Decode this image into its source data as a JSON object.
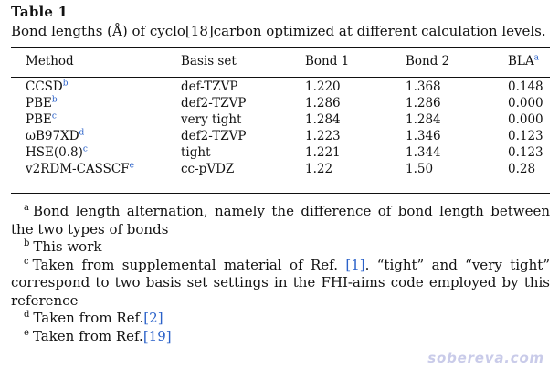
{
  "table_label": "Table 1",
  "caption": "Bond lengths (Å) of cyclo[18]carbon optimized at different calculation levels.",
  "columns": {
    "method": "Method",
    "basis": "Basis set",
    "bond1": "Bond 1",
    "bond2": "Bond 2",
    "bla": "BLA",
    "bla_sup": "a"
  },
  "rows": [
    {
      "method": "CCSD",
      "sup": "b",
      "basis": "def-TZVP",
      "bond1": "1.220",
      "bond2": "1.368",
      "bla": "0.148"
    },
    {
      "method": "PBE",
      "sup": "b",
      "basis": "def2-TZVP",
      "bond1": "1.286",
      "bond2": "1.286",
      "bla": "0.000"
    },
    {
      "method": "PBE",
      "sup": "c",
      "basis": "very tight",
      "bond1": "1.284",
      "bond2": "1.284",
      "bla": "0.000"
    },
    {
      "method": "ωB97XD",
      "sup": "d",
      "basis": "def2-TZVP",
      "bond1": "1.223",
      "bond2": "1.346",
      "bla": "0.123"
    },
    {
      "method": "HSE(0.8)",
      "sup": "c",
      "basis": "tight",
      "bond1": "1.221",
      "bond2": "1.344",
      "bla": "0.123"
    },
    {
      "method": "v2RDM-CASSCF",
      "sup": "e",
      "basis": "cc-pVDZ",
      "bond1": "1.22",
      "bond2": "1.50",
      "bla": "0.28"
    }
  ],
  "notes": [
    {
      "mark": "a",
      "text": "Bond length alternation, namely the difference of bond length between the two types of bonds",
      "ref": "",
      "after": ""
    },
    {
      "mark": "b",
      "text": "This work",
      "ref": "",
      "after": ""
    },
    {
      "mark": "c",
      "text": "Taken from supplemental material of Ref. ",
      "ref": "[1]",
      "after": ". “tight” and “very tight” correspond to two basis set settings in the FHI-aims code employed by this reference"
    },
    {
      "mark": "d",
      "text": "Taken from Ref.",
      "ref": "[2]",
      "after": ""
    },
    {
      "mark": "e",
      "text": "Taken from Ref.",
      "ref": "[19]",
      "after": ""
    }
  ],
  "watermark": "sobereva.com",
  "colors": {
    "reference_link": "#2b62c9",
    "watermark": "#c9cbe9"
  }
}
